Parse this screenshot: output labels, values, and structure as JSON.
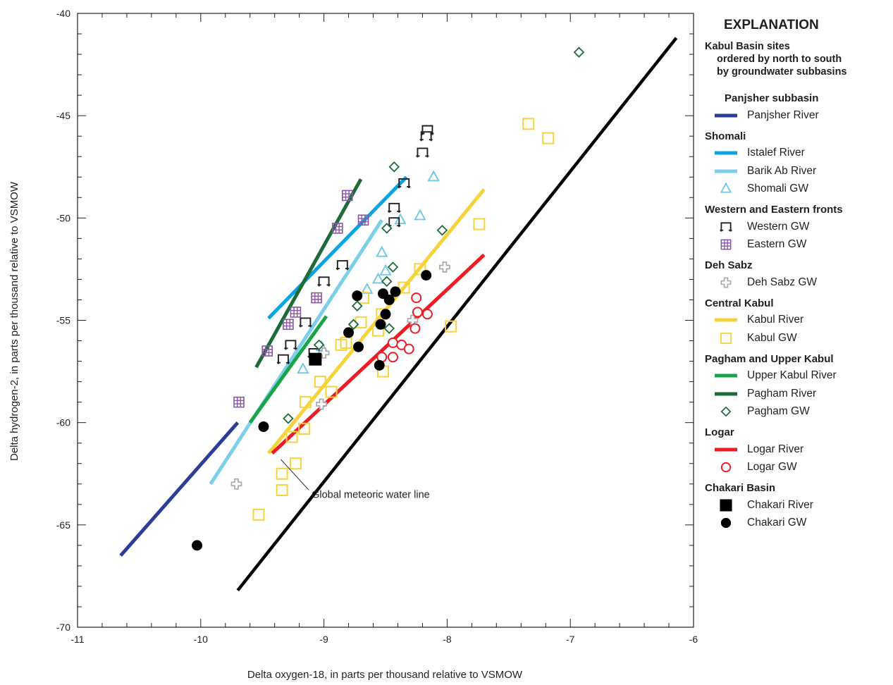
{
  "chart_data": {
    "type": "scatter",
    "title": "",
    "xlabel": "Delta oxygen-18, in parts per thousand relative to VSMOW",
    "ylabel": "Delta hydrogen-2, in parts per thousand relative to VSMOW",
    "xlim": [
      -11,
      -6
    ],
    "ylim": [
      -70,
      -40
    ],
    "xticks": [
      "-11",
      "-10",
      "-9",
      "-8",
      "-7",
      "-6"
    ],
    "yticks": [
      "-40",
      "-45",
      "-50",
      "-55",
      "-60",
      "-65",
      "-70"
    ],
    "grid": false,
    "legend_position": "right",
    "annotation": {
      "text": "Global meteoric water line",
      "x": -9.1,
      "y": -63.5,
      "arrow_to": [
        -9.35,
        -61.8
      ]
    },
    "series": [
      {
        "name": "Panjsher River",
        "kind": "line",
        "color": "#2b3e97",
        "points": [
          [
            -10.65,
            -66.5
          ],
          [
            -9.7,
            -60.0
          ]
        ]
      },
      {
        "name": "Istalef River",
        "kind": "line",
        "color": "#0aa4e3",
        "points": [
          [
            -9.45,
            -54.9
          ],
          [
            -8.33,
            -48.0
          ]
        ]
      },
      {
        "name": "Barik Ab River",
        "kind": "line",
        "color": "#7ccfea",
        "points": [
          [
            -9.92,
            -63.0
          ],
          [
            -8.53,
            -50.1
          ]
        ]
      },
      {
        "name": "Shomali GW",
        "kind": "points",
        "marker": "triangle",
        "color": "#6cc8e6",
        "points": [
          [
            -8.11,
            -48.0
          ],
          [
            -8.38,
            -50.1
          ],
          [
            -8.22,
            -49.9
          ],
          [
            -8.53,
            -51.7
          ],
          [
            -8.5,
            -52.6
          ],
          [
            -8.56,
            -53.0
          ],
          [
            -8.65,
            -53.5
          ],
          [
            -9.17,
            -57.4
          ],
          [
            -9.02,
            -56.3
          ]
        ]
      },
      {
        "name": "Western GW",
        "kind": "points",
        "marker": "bracket",
        "color": "#231f20",
        "points": [
          [
            -8.16,
            -45.7
          ],
          [
            -8.17,
            -46.0
          ],
          [
            -8.2,
            -46.8
          ],
          [
            -8.35,
            -48.3
          ],
          [
            -8.43,
            -49.5
          ],
          [
            -8.43,
            -50.2
          ],
          [
            -8.85,
            -52.3
          ],
          [
            -9.0,
            -53.1
          ],
          [
            -9.15,
            -55.1
          ],
          [
            -9.27,
            -56.2
          ],
          [
            -9.33,
            -56.9
          ],
          [
            -9.08,
            -56.6
          ]
        ]
      },
      {
        "name": "Eastern GW",
        "kind": "points",
        "marker": "hash",
        "color": "#8a55a5",
        "points": [
          [
            -8.81,
            -48.9
          ],
          [
            -8.89,
            -50.5
          ],
          [
            -8.68,
            -50.1
          ],
          [
            -9.06,
            -53.9
          ],
          [
            -9.23,
            -54.6
          ],
          [
            -9.29,
            -55.2
          ],
          [
            -9.46,
            -56.5
          ],
          [
            -9.69,
            -59.0
          ]
        ]
      },
      {
        "name": "Deh Sabz GW",
        "kind": "points",
        "marker": "cross",
        "color": "#a7a9ac",
        "points": [
          [
            -8.02,
            -52.4
          ],
          [
            -8.28,
            -55.0
          ],
          [
            -9.0,
            -56.6
          ],
          [
            -9.02,
            -59.1
          ],
          [
            -9.71,
            -63.0
          ]
        ]
      },
      {
        "name": "Kabul River",
        "kind": "line",
        "color": "#f7d33b",
        "points": [
          [
            -9.45,
            -61.5
          ],
          [
            -7.7,
            -48.6
          ]
        ]
      },
      {
        "name": "Kabul GW",
        "kind": "points",
        "marker": "square",
        "color": "#f7d33b",
        "points": [
          [
            -7.34,
            -45.4
          ],
          [
            -7.18,
            -46.1
          ],
          [
            -7.74,
            -50.3
          ],
          [
            -8.22,
            -52.5
          ],
          [
            -8.35,
            -53.4
          ],
          [
            -7.97,
            -55.3
          ],
          [
            -8.53,
            -54.7
          ],
          [
            -8.56,
            -55.5
          ],
          [
            -8.68,
            -53.9
          ],
          [
            -8.7,
            -55.1
          ],
          [
            -8.82,
            -56.1
          ],
          [
            -8.86,
            -56.2
          ],
          [
            -8.52,
            -57.5
          ],
          [
            -9.03,
            -58.0
          ],
          [
            -8.94,
            -58.5
          ],
          [
            -9.15,
            -59.0
          ],
          [
            -9.16,
            -60.3
          ],
          [
            -9.26,
            -60.7
          ],
          [
            -9.23,
            -62.0
          ],
          [
            -9.34,
            -62.5
          ],
          [
            -9.34,
            -63.3
          ],
          [
            -9.53,
            -64.5
          ]
        ]
      },
      {
        "name": "Upper Kabul River",
        "kind": "line",
        "color": "#1aa44a",
        "points": [
          [
            -9.6,
            -60.0
          ],
          [
            -8.98,
            -54.8
          ]
        ]
      },
      {
        "name": "Pagham River",
        "kind": "line",
        "color": "#1d6b37",
        "points": [
          [
            -9.55,
            -57.3
          ],
          [
            -8.7,
            -48.1
          ]
        ]
      },
      {
        "name": "Pagham GW",
        "kind": "points",
        "marker": "diamond",
        "color": "#1d6b37",
        "points": [
          [
            -6.93,
            -41.9
          ],
          [
            -8.43,
            -47.5
          ],
          [
            -8.04,
            -50.6
          ],
          [
            -8.49,
            -50.5
          ],
          [
            -8.44,
            -52.4
          ],
          [
            -8.49,
            -53.1
          ],
          [
            -8.73,
            -54.3
          ],
          [
            -8.76,
            -55.2
          ],
          [
            -8.47,
            -55.4
          ],
          [
            -9.04,
            -56.2
          ],
          [
            -9.29,
            -59.8
          ]
        ]
      },
      {
        "name": "Logar River",
        "kind": "line",
        "color": "#ed1c24",
        "points": [
          [
            -9.42,
            -61.5
          ],
          [
            -7.7,
            -51.8
          ]
        ]
      },
      {
        "name": "Logar GW",
        "kind": "points",
        "marker": "circle",
        "color": "#ed1c24",
        "points": [
          [
            -8.25,
            -53.9
          ],
          [
            -8.24,
            -54.6
          ],
          [
            -8.16,
            -54.7
          ],
          [
            -8.26,
            -55.4
          ],
          [
            -8.44,
            -56.1
          ],
          [
            -8.37,
            -56.2
          ],
          [
            -8.31,
            -56.4
          ],
          [
            -8.44,
            -56.8
          ],
          [
            -8.53,
            -56.8
          ]
        ]
      },
      {
        "name": "Chakari River",
        "kind": "points",
        "marker": "filled-square",
        "color": "#000000",
        "points": [
          [
            -9.07,
            -56.9
          ]
        ]
      },
      {
        "name": "Chakari GW",
        "kind": "points",
        "marker": "filled-circle",
        "color": "#000000",
        "points": [
          [
            -10.03,
            -66.0
          ],
          [
            -9.49,
            -60.2
          ],
          [
            -8.72,
            -56.3
          ],
          [
            -8.55,
            -57.2
          ],
          [
            -8.8,
            -55.6
          ],
          [
            -8.54,
            -55.2
          ],
          [
            -8.5,
            -54.7
          ],
          [
            -8.47,
            -54.0
          ],
          [
            -8.42,
            -53.6
          ],
          [
            -8.52,
            -53.7
          ],
          [
            -8.73,
            -53.8
          ],
          [
            -8.17,
            -52.8
          ]
        ]
      },
      {
        "name": "Global meteoric water line",
        "kind": "line",
        "color": "#000000",
        "points": [
          [
            -9.7,
            -68.2
          ],
          [
            -6.14,
            -41.2
          ]
        ]
      }
    ]
  },
  "legend": {
    "title": "EXPLANATION",
    "intro": [
      "Kabul Basin sites",
      "ordered by north to south",
      "by groundwater subbasins"
    ],
    "groups": [
      {
        "title": "Panjsher subbasin",
        "items": [
          {
            "label": "Panjsher River",
            "symbol": "line",
            "color": "#2b3e97"
          }
        ]
      },
      {
        "title": "Shomali",
        "items": [
          {
            "label": "Istalef River",
            "symbol": "line",
            "color": "#0aa4e3"
          },
          {
            "label": "Barik Ab River",
            "symbol": "line",
            "color": "#7ccfea"
          },
          {
            "label": "Shomali GW",
            "symbol": "triangle",
            "color": "#6cc8e6"
          }
        ]
      },
      {
        "title": "Western and Eastern fronts",
        "items": [
          {
            "label": "Western GW",
            "symbol": "bracket",
            "color": "#231f20"
          },
          {
            "label": "Eastern GW",
            "symbol": "hash",
            "color": "#8a55a5"
          }
        ]
      },
      {
        "title": "Deh Sabz",
        "items": [
          {
            "label": "Deh Sabz GW",
            "symbol": "cross",
            "color": "#a7a9ac"
          }
        ]
      },
      {
        "title": "Central Kabul",
        "items": [
          {
            "label": "Kabul River",
            "symbol": "line",
            "color": "#f7d33b"
          },
          {
            "label": "Kabul GW",
            "symbol": "square",
            "color": "#f7d33b"
          }
        ]
      },
      {
        "title": "Pagham and Upper Kabul",
        "items": [
          {
            "label": "Upper Kabul River",
            "symbol": "line",
            "color": "#1aa44a"
          },
          {
            "label": "Pagham River",
            "symbol": "line",
            "color": "#1d6b37"
          },
          {
            "label": "Pagham GW",
            "symbol": "diamond",
            "color": "#1d6b37"
          }
        ]
      },
      {
        "title": "Logar",
        "items": [
          {
            "label": "Logar River",
            "symbol": "line",
            "color": "#ed1c24"
          },
          {
            "label": "Logar GW",
            "symbol": "circle",
            "color": "#ed1c24"
          }
        ]
      },
      {
        "title": "Chakari Basin",
        "items": [
          {
            "label": "Chakari River",
            "symbol": "filled-square",
            "color": "#000000"
          },
          {
            "label": "Chakari GW",
            "symbol": "filled-circle",
            "color": "#000000"
          }
        ]
      }
    ]
  }
}
